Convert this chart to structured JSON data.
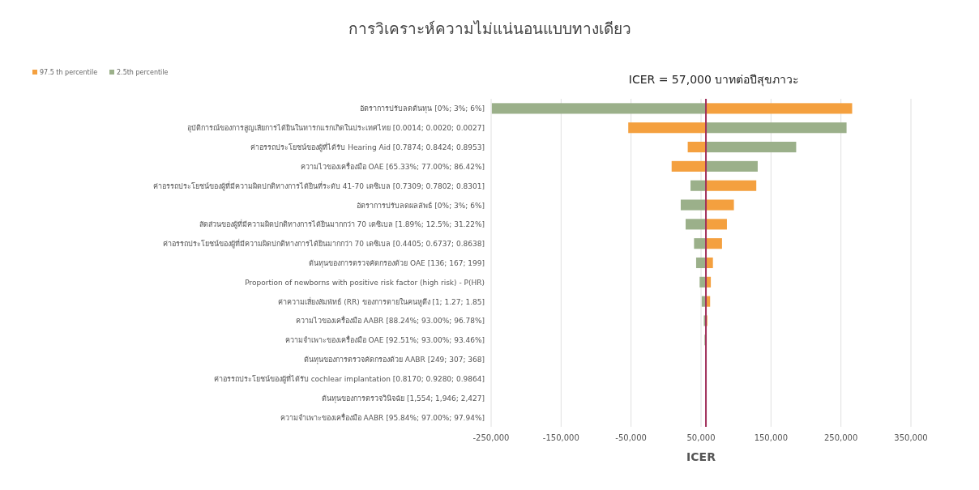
{
  "chart_data": {
    "type": "bar",
    "orientation": "horizontal",
    "title": "การวิเคราะห์ความไม่แน่นอนแบบทางเดียว",
    "xlabel": "ICER",
    "categories": [
      "อัตราการปรับลดต้นทุน  [0%; 3%; 6%]",
      "อุบัติการณ์ของการสูญเสียการได้ยินในทารกแรกเกิดในประเทศไทย  [0.0014; 0.0020; 0.0027]",
      "ค่าอรรถประโยชน์ของผู้ที่ได้รับ  Hearing Aid [0.7874; 0.8424; 0.8953]",
      "ความไวของเครื่องมือ  OAE [65.33%; 77.00%; 86.42%]",
      "ค่าอรรถประโยชน์ของผู้ที่มีความผิดปกติทางการได้ยินที่ระดับ  41-70 เดซิเบล [0.7309; 0.7802; 0.8301]",
      "อัตราการปรับลดผลลัพธ์  [0%; 3%; 6%]",
      "สัดส่วนของผู้ที่มีความผิดปกติทางการได้ยินมากกว่า  70 เดซิเบล [1.89%; 12.5%; 31.22%]",
      "ค่าอรรถประโยชน์ของผู้ที่มีความผิดปกติทางการได้ยินมากกว่า  70 เดซิเบล [0.4405; 0.6737; 0.8638]",
      "ต้นทุนของการตรวจคัดกรองด้วย  OAE [136; 167; 199]",
      "Proportion of newborns with positive risk factor (high risk) - P(HR)",
      "ค่าความเสี่ยงสัมพัทธ์  (RR) ของการตายในคนหูตึง [1; 1.27; 1.85]",
      "ความไวของเครื่องมือ  AABR [88.24%; 93.00%; 96.78%]",
      "ความจำเพาะของเครื่องมือ  OAE [92.51%; 93.00%; 93.46%]",
      "ต้นทุนของการตรวจคัดกรองด้วย  AABR [249; 307; 368]",
      "ค่าอรรถประโยชน์ของผู้ที่ได้รับ  cochlear implantation [0.8170; 0.9280; 0.9864]",
      "ต้นทุนของการตรวจวินิจฉัย [1,554; 1,946; 2,427]",
      "ความจำเพาะของเครื่องมือ  AABR [95.84%; 97.00%; 97.94%]"
    ],
    "series": [
      {
        "name": "97.5 th percentile",
        "color": "#f4a03f",
        "base": [
          57000,
          57000,
          57000,
          57000,
          57000,
          57000,
          57000,
          57000,
          57000,
          57000,
          57000,
          57000,
          null,
          null,
          null,
          null,
          null
        ],
        "values": [
          209000,
          -111000,
          -26000,
          -49000,
          72000,
          40000,
          30000,
          23000,
          10000,
          7000,
          6000,
          2000,
          null,
          null,
          null,
          null,
          null
        ]
      },
      {
        "name": "2.5th percentile",
        "color": "#9bb08a",
        "base": [
          57000,
          57000,
          57000,
          57000,
          57000,
          57000,
          57000,
          57000,
          57000,
          57000,
          57000,
          57000,
          57000,
          null,
          null,
          null,
          null
        ],
        "values": [
          -306000,
          201000,
          129000,
          74000,
          -22000,
          -36000,
          -29000,
          -17000,
          -14000,
          -9000,
          -6000,
          -3000,
          -2000,
          null,
          null,
          null,
          null
        ]
      }
    ],
    "xlim": [
      -250000,
      350000
    ],
    "xticks": [
      {
        "value": -250000,
        "label": "-250,000"
      },
      {
        "value": -150000,
        "label": "-150,000"
      },
      {
        "value": -50000,
        "label": "-50,000"
      },
      {
        "value": 50000,
        "label": "50,000"
      },
      {
        "value": 150000,
        "label": "150,000"
      },
      {
        "value": 250000,
        "label": "250,000"
      },
      {
        "value": 350000,
        "label": "350,000"
      }
    ],
    "grid": "x",
    "legend": "top left",
    "ref_lines": [
      {
        "axis": "x",
        "value": 57000,
        "label": "ICER = 57,000 บาทต่อปีสุขภาวะ",
        "color": "#a0305a"
      }
    ]
  }
}
